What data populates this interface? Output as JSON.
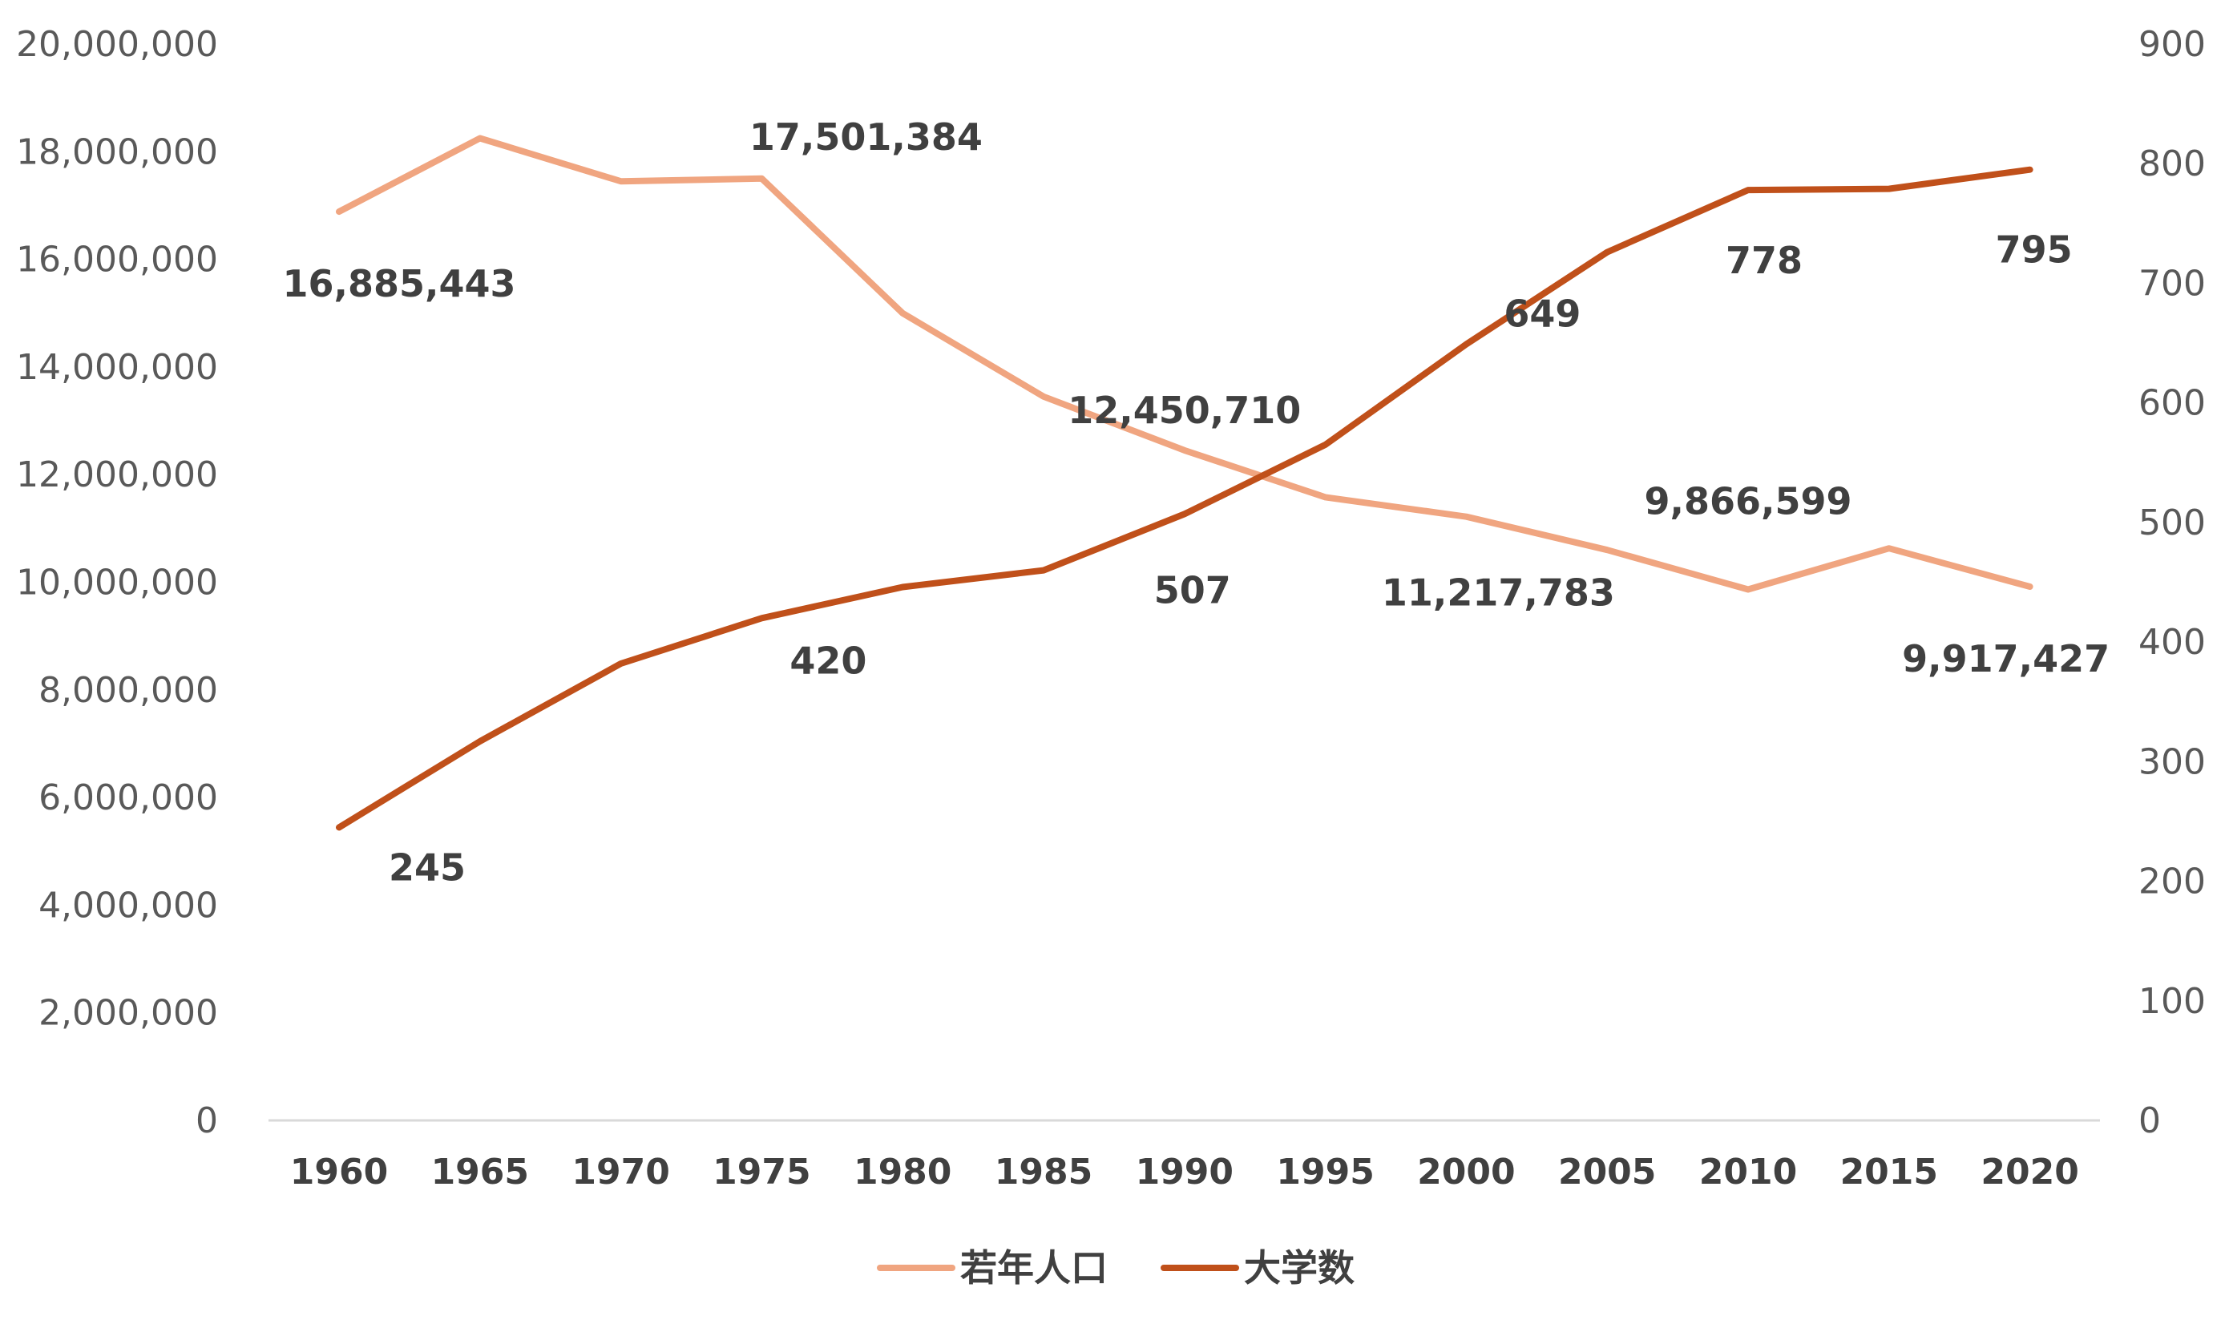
{
  "chart_data": {
    "type": "line",
    "title": "",
    "x": [
      1960,
      1965,
      1970,
      1975,
      1980,
      1985,
      1990,
      1995,
      2000,
      2005,
      2010,
      2015,
      2020
    ],
    "x_tick_labels": [
      "1960",
      "1965",
      "1970",
      "1975",
      "1980",
      "1985",
      "1990",
      "1995",
      "2000",
      "2005",
      "2010",
      "2015",
      "2020"
    ],
    "y_left": {
      "range": [
        0,
        20000000
      ],
      "tick_labels": [
        "0",
        "2,000,000",
        "4,000,000",
        "6,000,000",
        "8,000,000",
        "10,000,000",
        "12,000,000",
        "14,000,000",
        "16,000,000",
        "18,000,000",
        "20,000,000"
      ]
    },
    "y_right": {
      "range": [
        0,
        900
      ],
      "tick_labels": [
        "0",
        "100",
        "200",
        "300",
        "400",
        "500",
        "600",
        "700",
        "800",
        "900"
      ]
    },
    "grid": false,
    "legend_position": "bottom",
    "series": [
      {
        "name": "若年人口",
        "axis": "left",
        "color": "#F0A580",
        "values": [
          16885443,
          18250000,
          17450000,
          17501384,
          15000000,
          13450000,
          12450710,
          11580000,
          11217783,
          10600000,
          9866599,
          10630000,
          9917427
        ],
        "data_labels": [
          {
            "index": 0,
            "text": "16,885,443"
          },
          {
            "index": 3,
            "text": "17,501,384"
          },
          {
            "index": 6,
            "text": "12,450,710"
          },
          {
            "index": 8,
            "text": "11,217,783"
          },
          {
            "index": 10,
            "text": "9,866,599"
          },
          {
            "index": 12,
            "text": "9,917,427"
          }
        ]
      },
      {
        "name": "大学数",
        "axis": "right",
        "color": "#C0501A",
        "values": [
          245,
          317,
          382,
          420,
          446,
          460,
          507,
          565,
          649,
          726,
          778,
          779,
          795
        ],
        "data_labels": [
          {
            "index": 0,
            "text": "245"
          },
          {
            "index": 3,
            "text": "420"
          },
          {
            "index": 6,
            "text": "507"
          },
          {
            "index": 8,
            "text": "649"
          },
          {
            "index": 10,
            "text": "778"
          },
          {
            "index": 12,
            "text": "795"
          }
        ]
      }
    ]
  }
}
